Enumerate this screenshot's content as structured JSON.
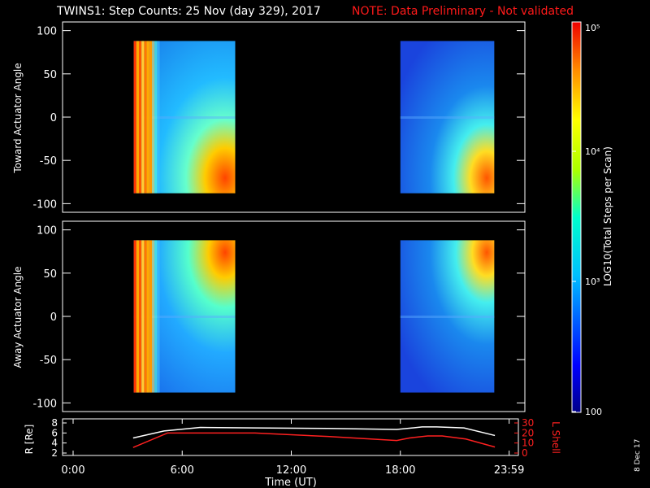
{
  "title": "TWINS1: Step Counts: 25 Nov (day 329), 2017",
  "note": "NOTE: Data Preliminary - Not validated",
  "date_stamp": "8 Dec 17",
  "chart_data": [
    {
      "type": "heatmap",
      "ylabel": "Toward Actuator Angle",
      "ylim": [
        -110,
        110
      ],
      "yticks": [
        "100",
        "50",
        "0",
        "-50",
        "-100"
      ],
      "data_blocks": [
        {
          "t_start": "03:20",
          "t_end": "08:55",
          "angle_range": [
            -88,
            88
          ]
        },
        {
          "t_start": "18:00",
          "t_end": "23:10",
          "angle_range": [
            -88,
            88
          ]
        }
      ]
    },
    {
      "type": "heatmap",
      "ylabel": "Away Actuator Angle",
      "ylim": [
        -110,
        110
      ],
      "yticks": [
        "100",
        "50",
        "0",
        "-50",
        "-100"
      ],
      "data_blocks": [
        {
          "t_start": "03:20",
          "t_end": "08:55",
          "angle_range": [
            -88,
            88
          ]
        },
        {
          "t_start": "18:00",
          "t_end": "23:10",
          "angle_range": [
            -88,
            88
          ]
        }
      ]
    },
    {
      "type": "line",
      "ylabel": "R [Re]",
      "y2label": "L Shell",
      "xlabel": "Time (UT)",
      "xticks": [
        "0:00",
        "6:00",
        "12:00",
        "18:00",
        "23:59"
      ],
      "yticks": [
        "8",
        "6",
        "4",
        "2"
      ],
      "y2ticks": [
        "30",
        "20",
        "10",
        "0"
      ],
      "series": [
        {
          "name": "R",
          "color": "#ffffff",
          "x": [
            3.3,
            5,
            7,
            10,
            14,
            17.8,
            19.2,
            20,
            21.5,
            23.2
          ],
          "y": [
            5.0,
            6.4,
            7.1,
            7.0,
            6.9,
            6.7,
            7.2,
            7.2,
            7.0,
            5.5
          ]
        },
        {
          "name": "L Shell",
          "color": "#ff2020",
          "x": [
            3.3,
            5.2,
            10,
            14,
            17.8,
            18.5,
            19.5,
            20.3,
            21.6,
            23.2
          ],
          "y": [
            5.5,
            20,
            20,
            16.5,
            12.5,
            15,
            17,
            17,
            14,
            6
          ]
        }
      ]
    }
  ],
  "colorbar": {
    "label": "LOG10(Total Steps per Scan)",
    "ticks": [
      "10⁵",
      "10⁴",
      "10³",
      "100"
    ]
  }
}
